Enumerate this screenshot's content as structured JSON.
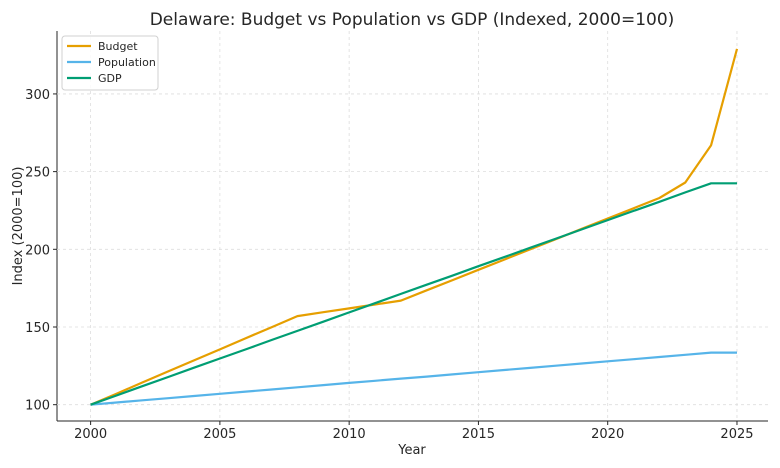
{
  "chart_data": {
    "type": "line",
    "title": "Delaware: Budget vs Population vs GDP (Indexed, 2000=100)",
    "xlabel": "Year",
    "ylabel": "Index (2000=100)",
    "xlim": [
      1998.7,
      2026.2
    ],
    "ylim": [
      89.5,
      340.5
    ],
    "xticks": [
      2000,
      2005,
      2010,
      2015,
      2020,
      2025
    ],
    "yticks": [
      100,
      150,
      200,
      250,
      300
    ],
    "grid": true,
    "legend_position": "top-left",
    "x": [
      2000,
      2001,
      2002,
      2003,
      2004,
      2005,
      2006,
      2007,
      2008,
      2009,
      2010,
      2011,
      2012,
      2013,
      2014,
      2015,
      2016,
      2017,
      2018,
      2019,
      2020,
      2021,
      2022,
      2023,
      2024,
      2025
    ],
    "series": [
      {
        "name": "Budget",
        "color": "#e69f00",
        "values": [
          100,
          107.1,
          114.3,
          121.4,
          128.5,
          135.6,
          142.8,
          149.9,
          157.0,
          159.5,
          162.0,
          164.5,
          167.0,
          173.6,
          180.2,
          186.8,
          193.4,
          200.0,
          206.6,
          213.2,
          219.8,
          226.4,
          233.0,
          243.0,
          267.0,
          329.0
        ]
      },
      {
        "name": "Population",
        "color": "#56b4e9",
        "values": [
          100,
          101.4,
          102.8,
          104.2,
          105.6,
          107.0,
          108.4,
          109.8,
          111.2,
          112.6,
          114.0,
          115.4,
          116.8,
          118.1,
          119.5,
          120.9,
          122.3,
          123.7,
          125.1,
          126.5,
          127.9,
          129.3,
          130.7,
          132.1,
          133.5,
          133.5
        ]
      },
      {
        "name": "GDP",
        "color": "#009e73",
        "values": [
          100,
          105.9,
          111.9,
          117.8,
          123.8,
          129.7,
          135.6,
          141.6,
          147.5,
          153.4,
          159.4,
          165.3,
          171.3,
          177.2,
          183.1,
          189.1,
          195.0,
          201.0,
          206.9,
          212.8,
          218.8,
          224.7,
          230.6,
          236.6,
          242.5,
          242.5
        ]
      }
    ]
  }
}
